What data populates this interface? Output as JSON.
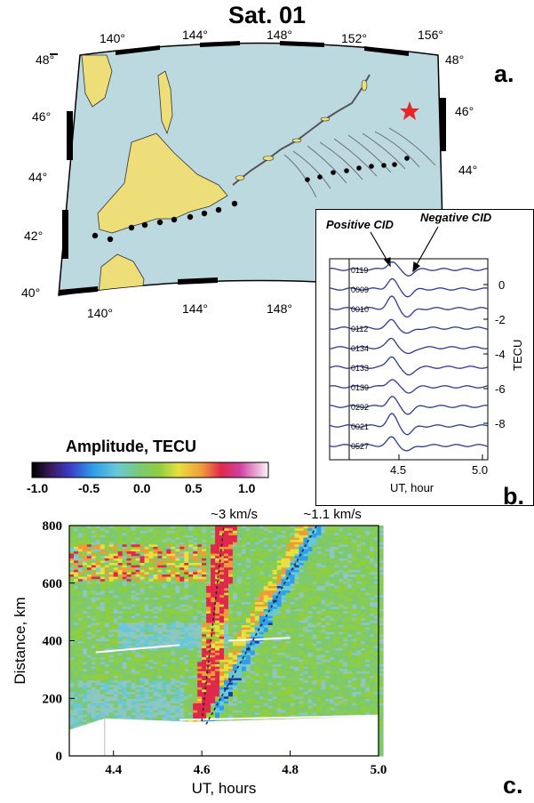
{
  "figure": {
    "title": "Sat. 01",
    "panel_labels": {
      "a": "a.",
      "b": "b.",
      "c": "c."
    }
  },
  "map": {
    "lon_labels": [
      "140°",
      "144°",
      "148°",
      "152°",
      "156°"
    ],
    "lon_labels_bottom": [
      "140°",
      "144°",
      "148°"
    ],
    "lat_labels_left": [
      "48°",
      "46°",
      "44°",
      "42°",
      "40°"
    ],
    "lat_labels_right": [
      "48°",
      "46°",
      "44°"
    ],
    "colors": {
      "sea": "#bcd9e0",
      "land": "#eede7a",
      "epicenter": "#e8262a"
    },
    "epicenter_icon": "red-star-icon"
  },
  "tec_inset": {
    "annotations": {
      "positive": "Positive CID",
      "negative": "Negative CID"
    },
    "station_labels": [
      "0119",
      "0009",
      "0010",
      "0112",
      "0134",
      "0133",
      "0139",
      "0292",
      "0021",
      "0527"
    ],
    "y_ticks": [
      "0",
      "-2",
      "-4",
      "-6",
      "-8"
    ],
    "ylabel": "TECU",
    "x_ticks": [
      "4.5",
      "5.0"
    ],
    "xlabel": "UT, hour",
    "line_color": "#2a3a9a"
  },
  "colorbar": {
    "title": "Amplitude, TECU",
    "ticks": [
      "-1.0",
      "-0.5",
      "0.0",
      "0.5",
      "1.0"
    ]
  },
  "chart_data": {
    "type": "heatmap",
    "xlabel": "UT, hours",
    "ylabel": "Distance, km",
    "xlim": [
      4.3,
      5.0
    ],
    "ylim": [
      0,
      800
    ],
    "x_ticks": [
      "4.4",
      "4.6",
      "4.8",
      "5.0"
    ],
    "y_ticks": [
      "0",
      "200",
      "400",
      "600",
      "800"
    ],
    "color_scale": [
      -1.0,
      1.2
    ],
    "annotations": [
      {
        "text": "~3 km/s",
        "line": {
          "x0": 4.6,
          "y0": 120,
          "x1": 4.65,
          "y1": 800
        }
      },
      {
        "text": "~1.1 km/s",
        "line": {
          "x0": 4.61,
          "y0": 110,
          "x1": 4.86,
          "y1": 800
        }
      }
    ]
  }
}
